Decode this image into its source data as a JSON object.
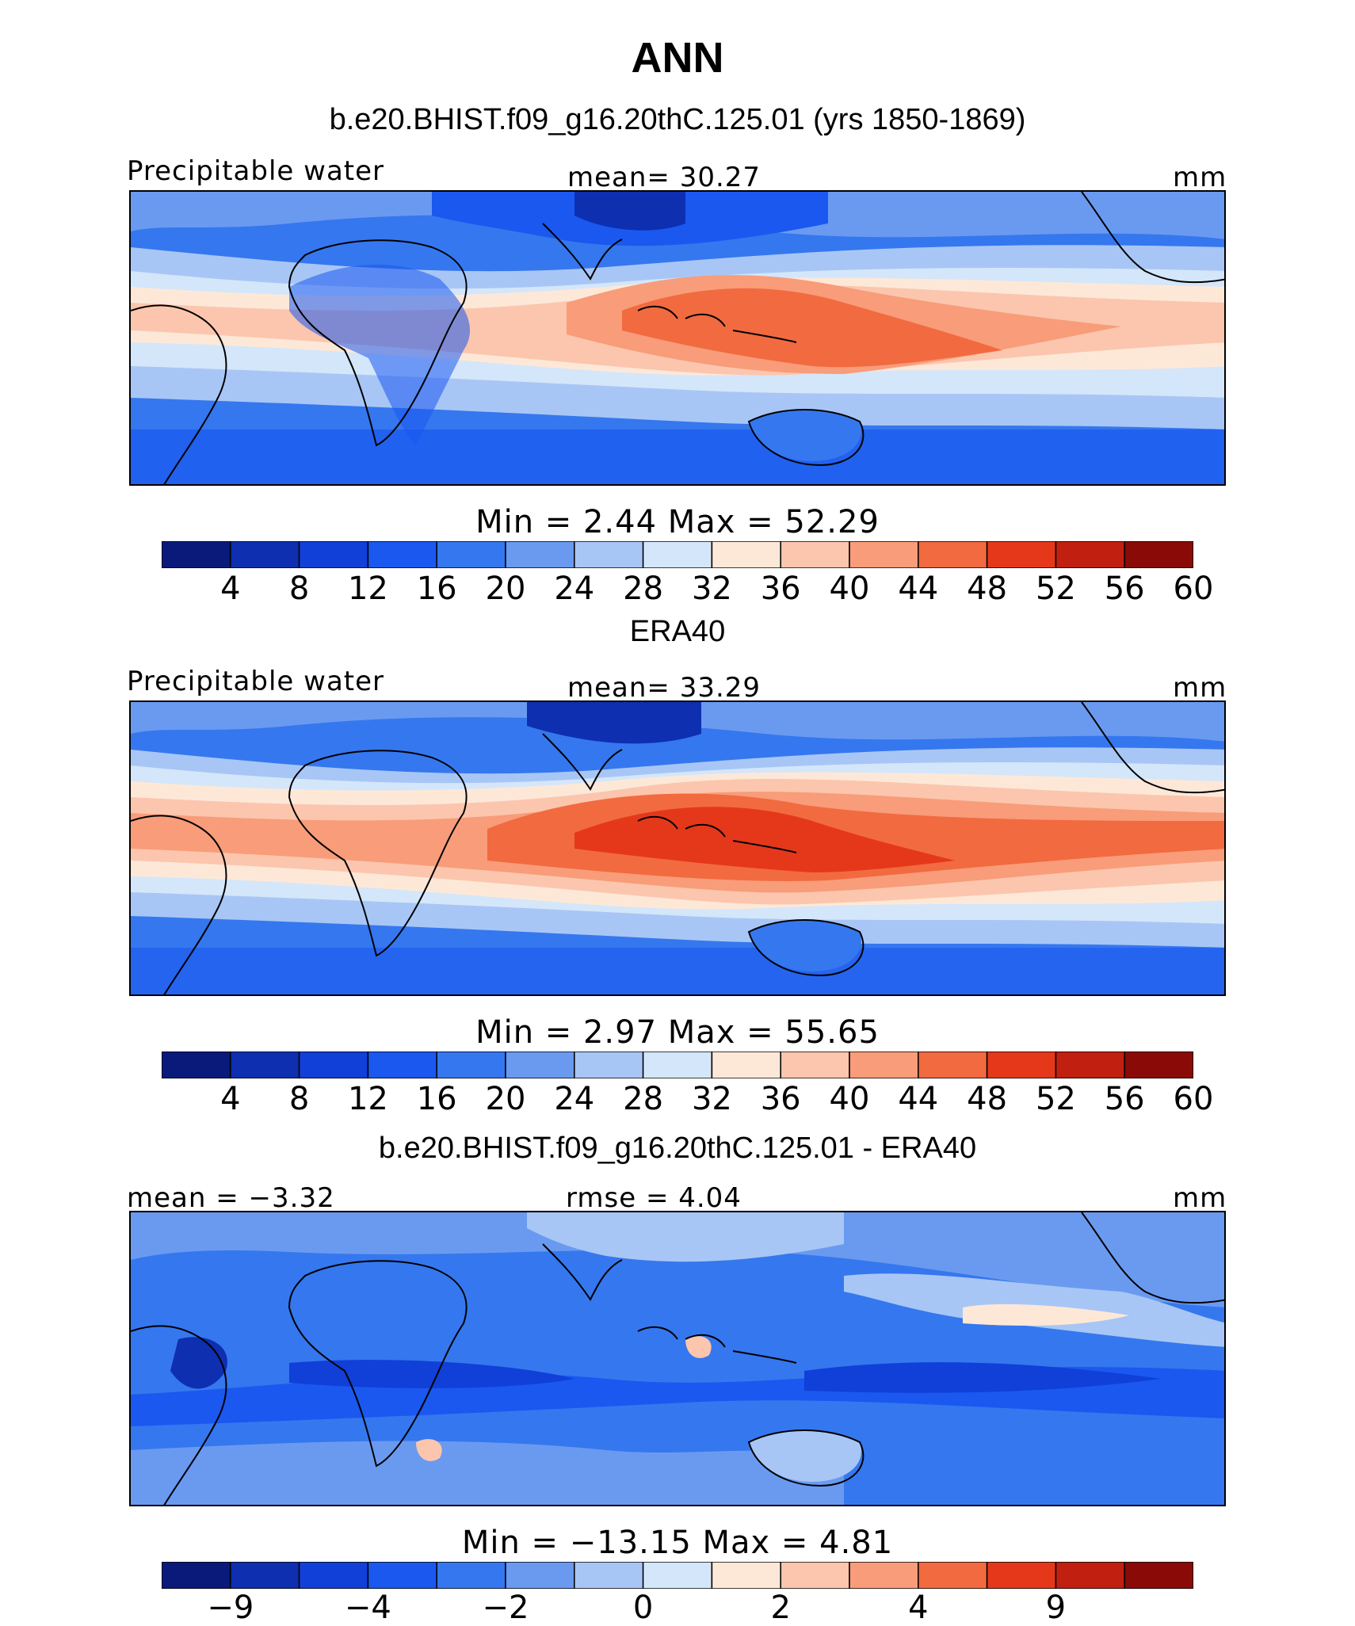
{
  "title": "ANN",
  "panels": [
    {
      "title": "b.e20.BHIST.f09_g16.20thC.125.01 (yrs 1850-1869)",
      "left_label": "Precipitable water",
      "center_label": "mean=   30.27",
      "right_label": "mm",
      "minmax": "Min  =    2.44  Max  =    52.29",
      "colorbar": {
        "colors": [
          "#0a1a7a",
          "#0d2fb0",
          "#1040d8",
          "#1a58f0",
          "#3577ee",
          "#6a9af0",
          "#a8c6f5",
          "#d4e6fa",
          "#fde8d8",
          "#fbc6ad",
          "#f89c7a",
          "#f26a40",
          "#e5381b",
          "#c11f10",
          "#8a0a07"
        ],
        "ticks": [
          "4",
          "8",
          "12",
          "16",
          "20",
          "24",
          "28",
          "32",
          "36",
          "40",
          "44",
          "48",
          "52",
          "56",
          "60"
        ]
      }
    },
    {
      "title": "ERA40",
      "left_label": "Precipitable water",
      "center_label": "mean=   33.29",
      "right_label": "mm",
      "minmax": "Min  =    2.97  Max  =    55.65",
      "colorbar": {
        "colors": [
          "#0a1a7a",
          "#0d2fb0",
          "#1040d8",
          "#1a58f0",
          "#3577ee",
          "#6a9af0",
          "#a8c6f5",
          "#d4e6fa",
          "#fde8d8",
          "#fbc6ad",
          "#f89c7a",
          "#f26a40",
          "#e5381b",
          "#c11f10",
          "#8a0a07"
        ],
        "ticks": [
          "4",
          "8",
          "12",
          "16",
          "20",
          "24",
          "28",
          "32",
          "36",
          "40",
          "44",
          "48",
          "52",
          "56",
          "60"
        ]
      }
    },
    {
      "title": "b.e20.BHIST.f09_g16.20thC.125.01 - ERA40",
      "left_label": "mean  =   −3.32",
      "center_label": "rmse  =    4.04",
      "right_label": "mm",
      "minmax": "Min  =  −13.15  Max  =    4.81",
      "colorbar": {
        "colors": [
          "#0a1a7a",
          "#0d2fb0",
          "#1040d8",
          "#1a58f0",
          "#3577ee",
          "#6a9af0",
          "#a8c6f5",
          "#d4e6fa",
          "#fde8d8",
          "#fbc6ad",
          "#f89c7a",
          "#f26a40",
          "#e5381b",
          "#c11f10",
          "#8a0a07"
        ],
        "ticks": [
          "−9",
          "−4",
          "−2",
          "0",
          "2",
          "4",
          "9"
        ]
      }
    }
  ]
}
